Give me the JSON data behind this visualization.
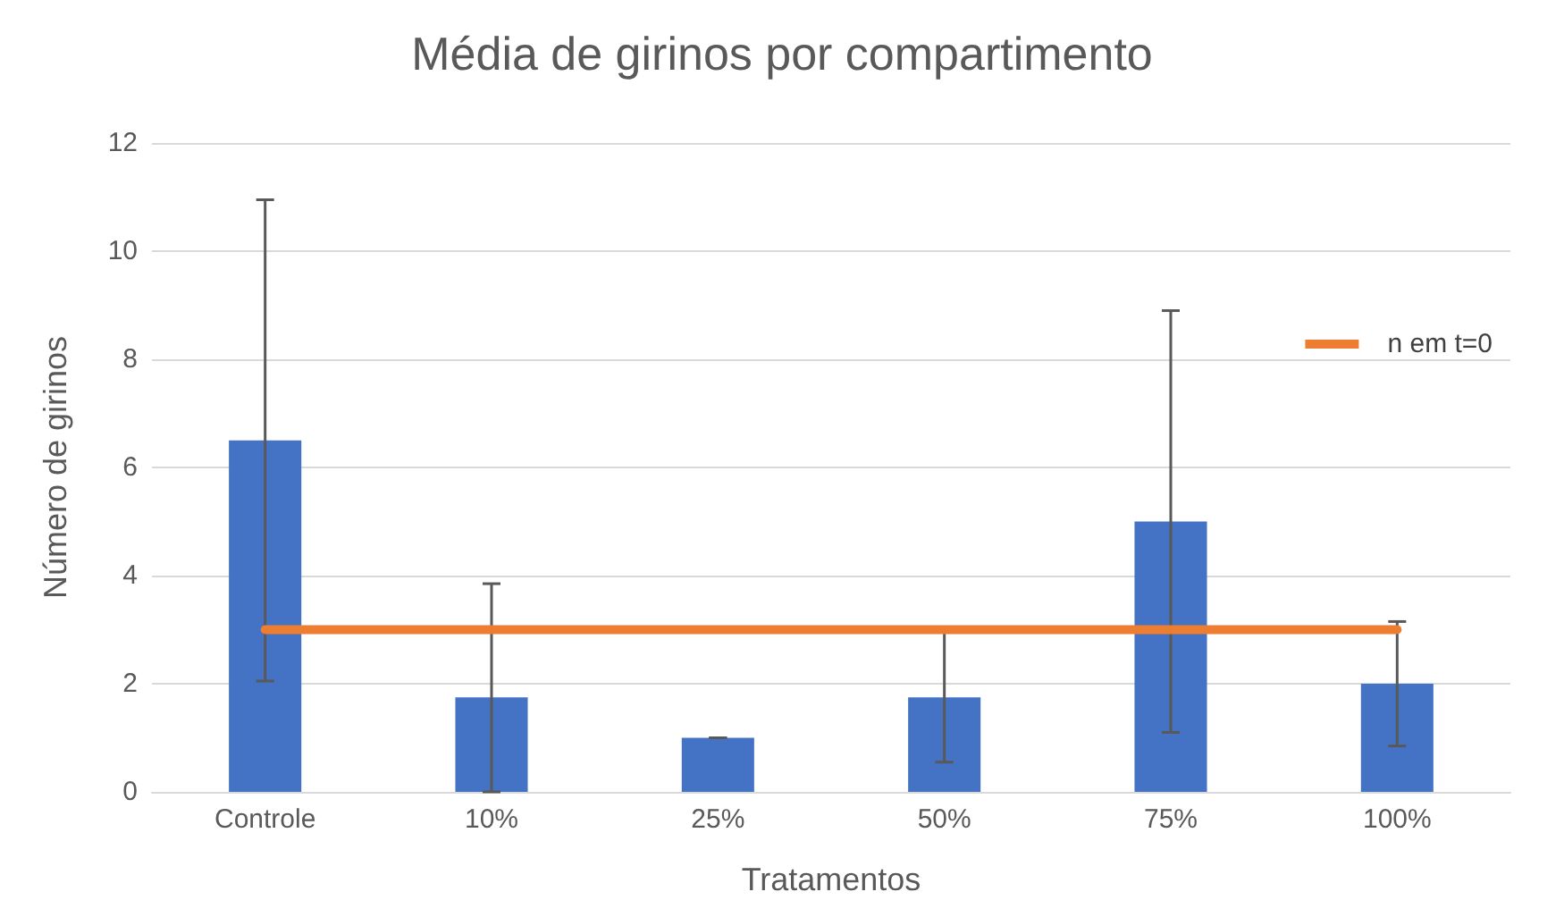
{
  "chart_data": {
    "type": "bar",
    "title": "Média de girinos por compartimento",
    "xlabel": "Tratamentos",
    "ylabel": "Número de girinos",
    "categories": [
      "Controle",
      "10%",
      "25%",
      "50%",
      "75%",
      "100%"
    ],
    "series": [
      {
        "color": "#4472c4",
        "values": [
          6.5,
          1.75,
          1.0,
          1.75,
          5.0,
          2.0
        ],
        "errors": [
          [
            2.05,
            10.95
          ],
          [
            0,
            3.85
          ],
          0,
          [
            0.55,
            2.95
          ],
          [
            1.1,
            8.9
          ],
          [
            0.85,
            3.15
          ]
        ]
      },
      {
        "type": "line",
        "name": "n em t=0",
        "color": "#ed7d31",
        "values": [
          3,
          3,
          3,
          3,
          3,
          3
        ]
      }
    ],
    "ylim": [
      0,
      12
    ],
    "yticks": [
      0,
      2,
      4,
      6,
      8,
      10,
      12
    ],
    "grid": "y",
    "legend": "right",
    "marker": "none"
  }
}
